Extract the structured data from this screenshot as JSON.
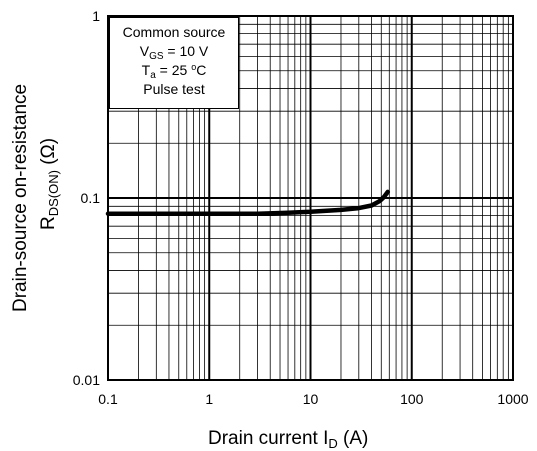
{
  "chart_data": {
    "type": "line",
    "xscale": "log",
    "yscale": "log",
    "xlim": [
      0.1,
      1000
    ],
    "ylim": [
      0.01,
      1
    ],
    "grid": true,
    "x_ticks": [
      "0.1",
      "1",
      "10",
      "100",
      "1000"
    ],
    "y_ticks": [
      "0.01",
      "0.1",
      "1"
    ],
    "xlabel": {
      "main": "Drain current  I",
      "sub": "D",
      "unit": "  (A)"
    },
    "ylabel": {
      "line1": "Drain-source on-resistance",
      "line2_main": "R",
      "line2_sub": "DS(ON)",
      "line2_unit": "  (Ω)"
    },
    "legend": {
      "line1": "Common source",
      "line2_main": "V",
      "line2_sub": "GS",
      "line2_rest": " = 10 V",
      "line3_main": "T",
      "line3_sub": "a",
      "line3_rest": " = 25 ",
      "line3_sup": "o",
      "line3_unit": "C",
      "line4": "Pulse test",
      "placement": "top-left"
    },
    "series": [
      {
        "x": [
          0.1,
          0.3,
          1,
          3,
          6,
          10,
          20,
          30,
          40,
          48,
          53,
          58
        ],
        "y": [
          0.082,
          0.082,
          0.082,
          0.082,
          0.083,
          0.084,
          0.086,
          0.088,
          0.091,
          0.096,
          0.101,
          0.108
        ]
      }
    ]
  }
}
